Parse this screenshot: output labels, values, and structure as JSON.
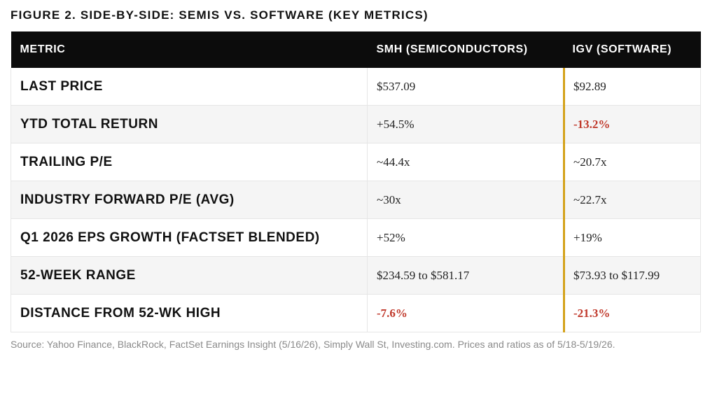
{
  "title": "FIGURE 2. SIDE-BY-SIDE: SEMIS VS. SOFTWARE (KEY METRICS)",
  "colors": {
    "header_bg": "#0c0c0c",
    "divider_accent": "#d4a21a",
    "negative": "#c0392b",
    "row_alt": "#f5f5f5"
  },
  "table": {
    "headers": [
      "METRIC",
      "SMH (SEMICONDUCTORS)",
      "IGV (SOFTWARE)"
    ],
    "rows": [
      {
        "metric": "LAST PRICE",
        "smh": "$537.09",
        "igv": "$92.89"
      },
      {
        "metric": "YTD TOTAL RETURN",
        "smh": "+54.5%",
        "igv": "-13.2%"
      },
      {
        "metric": "TRAILING P/E",
        "smh": "~44.4x",
        "igv": "~20.7x"
      },
      {
        "metric": "INDUSTRY FORWARD P/E (AVG)",
        "smh": "~30x",
        "igv": "~22.7x"
      },
      {
        "metric": "Q1 2026 EPS GROWTH (FACTSET BLENDED)",
        "smh": "+52%",
        "igv": "+19%"
      },
      {
        "metric": "52-WEEK RANGE",
        "smh": "$234.59 to $581.17",
        "igv": "$73.93 to $117.99"
      },
      {
        "metric": "DISTANCE FROM 52-WK HIGH",
        "smh": "-7.6%",
        "igv": "-21.3%"
      }
    ]
  },
  "source": "Source: Yahoo Finance, BlackRock, FactSet Earnings Insight (5/16/26), Simply Wall St, Investing.com. Prices and ratios as of 5/18-5/19/26."
}
